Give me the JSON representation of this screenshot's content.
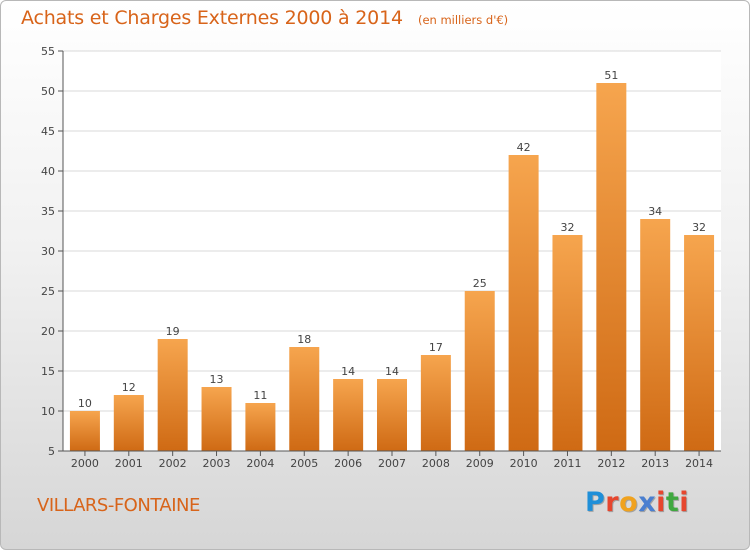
{
  "header": {
    "title": "Achats et Charges Externes 2000 à 2014",
    "subtitle": "(en milliers d'€)"
  },
  "footer": {
    "town": "VILLARS-FONTAINE",
    "logo": {
      "letters": [
        "P",
        "r",
        "o",
        "x",
        "i",
        "t",
        "i"
      ],
      "colors": [
        "#1f8fd8",
        "#e6462e",
        "#f0a21e",
        "#4a7fd0",
        "#e6462e",
        "#3fa83f",
        "#e6462e"
      ]
    }
  },
  "chart_data": {
    "type": "bar",
    "categories": [
      "2000",
      "2001",
      "2002",
      "2003",
      "2004",
      "2005",
      "2006",
      "2007",
      "2008",
      "2009",
      "2010",
      "2011",
      "2012",
      "2013",
      "2014"
    ],
    "values": [
      10,
      12,
      19,
      13,
      11,
      18,
      14,
      14,
      17,
      25,
      42,
      32,
      51,
      34,
      32
    ],
    "data_labels": [
      "10",
      "12",
      "19",
      "13",
      "11",
      "18",
      "14",
      "14",
      "17",
      "25",
      "42",
      "32",
      "51",
      "34",
      "32"
    ],
    "ylim": [
      5,
      55
    ],
    "yticks": [
      "5",
      "10",
      "15",
      "20",
      "25",
      "30",
      "35",
      "40",
      "45",
      "50",
      "55"
    ],
    "xlabel": "",
    "ylabel": "",
    "grid": true,
    "bar_color_light": "#f6a54e",
    "bar_color_dark": "#cf6a14",
    "grid_color": "#d9d9d9"
  }
}
